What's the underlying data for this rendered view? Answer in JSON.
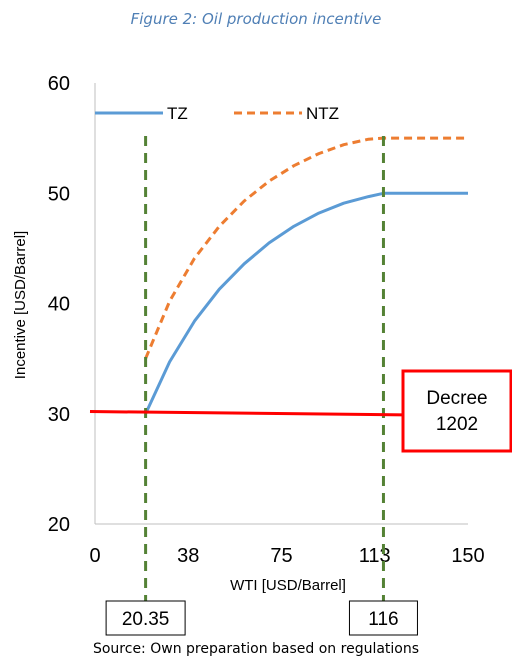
{
  "caption": "Figure 2: Oil production incentive",
  "source": "Source: Own preparation based on regulations",
  "chart_data": {
    "type": "line",
    "xlabel": "WTI [USD/Barrel]",
    "ylabel": "Incentive [USD/Barrel]",
    "xlim": [
      0,
      150
    ],
    "ylim": [
      20,
      60
    ],
    "x_ticks": [
      "0",
      "38",
      "75",
      "113",
      "150"
    ],
    "y_ticks": [
      "20",
      "30",
      "40",
      "50",
      "60"
    ],
    "grid": false,
    "legend_position": "top",
    "series": [
      {
        "name": "TZ",
        "color": "#5b9bd5",
        "style": "solid",
        "points": [
          [
            20.35,
            30
          ],
          [
            30,
            34.7
          ],
          [
            40,
            38.4
          ],
          [
            50,
            41.3
          ],
          [
            60,
            43.6
          ],
          [
            70,
            45.5
          ],
          [
            80,
            47.0
          ],
          [
            90,
            48.2
          ],
          [
            100,
            49.1
          ],
          [
            110,
            49.7
          ],
          [
            116,
            50
          ],
          [
            150,
            50
          ]
        ]
      },
      {
        "name": "NTZ",
        "color": "#ed7d31",
        "style": "dashed",
        "points": [
          [
            20.35,
            35
          ],
          [
            30,
            40.2
          ],
          [
            40,
            44.1
          ],
          [
            50,
            47.0
          ],
          [
            60,
            49.3
          ],
          [
            70,
            51.1
          ],
          [
            80,
            52.5
          ],
          [
            90,
            53.6
          ],
          [
            100,
            54.4
          ],
          [
            110,
            54.9
          ],
          [
            116,
            55
          ],
          [
            150,
            55
          ]
        ]
      }
    ],
    "reference_line": {
      "y_start": 30.2,
      "y_end": 29.9,
      "color": "#ff0000",
      "label_lines": [
        "Decree",
        "1202"
      ]
    },
    "vertical_markers": [
      {
        "x": 20.35,
        "label": "20.35",
        "color": "#548235"
      },
      {
        "x": 116,
        "label": "116",
        "color": "#548235"
      }
    ]
  }
}
